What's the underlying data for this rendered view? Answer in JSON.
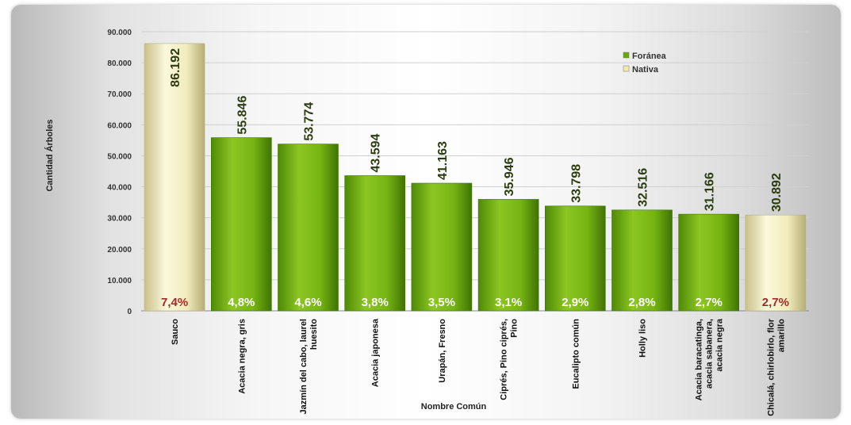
{
  "chart_data": {
    "type": "bar",
    "xlabel": "Nombre  Común",
    "ylabel": "Cantidad Árboles",
    "ylim": [
      0,
      90000
    ],
    "yticks": [
      "0",
      "10.000",
      "20.000",
      "30.000",
      "40.000",
      "50.000",
      "60.000",
      "70.000",
      "80.000",
      "90.000"
    ],
    "ytick_values": [
      0,
      10000,
      20000,
      30000,
      40000,
      50000,
      60000,
      70000,
      80000,
      90000
    ],
    "legend": {
      "position": "top-right",
      "items": [
        {
          "label": "Foránea",
          "color": "#6aa60f"
        },
        {
          "label": "Nativa",
          "color": "#efe9b8"
        }
      ]
    },
    "categories": [
      [
        "Sauco"
      ],
      [
        "Acacia negra, gris"
      ],
      [
        "Jazmín del cabo, laurel",
        "huesito"
      ],
      [
        "Acacia japonesa"
      ],
      [
        "Urapán, Fresno"
      ],
      [
        "Ciprés, Pino ciprés,",
        "Pino"
      ],
      [
        "Eucalipto común"
      ],
      [
        "Holly liso"
      ],
      [
        "Acacia baracatinga,",
        "acacia sabanera,",
        "acacia negra"
      ],
      [
        "Chicalá, chirlobirlo, flor",
        "amarillo"
      ]
    ],
    "values": [
      86192,
      55846,
      53774,
      43594,
      41163,
      35946,
      33798,
      32516,
      31166,
      30892
    ],
    "value_labels": [
      "86.192",
      "55.846",
      "53.774",
      "43.594",
      "41.163",
      "35.946",
      "33.798",
      "32.516",
      "31.166",
      "30.892"
    ],
    "percent_labels": [
      "7,4%",
      "4,8%",
      "4,6%",
      "3,8%",
      "3,5%",
      "3,1%",
      "2,9%",
      "2,8%",
      "2,7%",
      "2,7%"
    ],
    "origin": [
      "Nativa",
      "Foránea",
      "Foránea",
      "Foránea",
      "Foránea",
      "Foránea",
      "Foránea",
      "Foránea",
      "Foránea",
      "Nativa"
    ],
    "colors": {
      "Foránea": "#6aa60f",
      "Nativa": "#efe9b8",
      "native_percent_text": "#a52a2a",
      "foreign_percent_text": "#ffffff"
    }
  }
}
